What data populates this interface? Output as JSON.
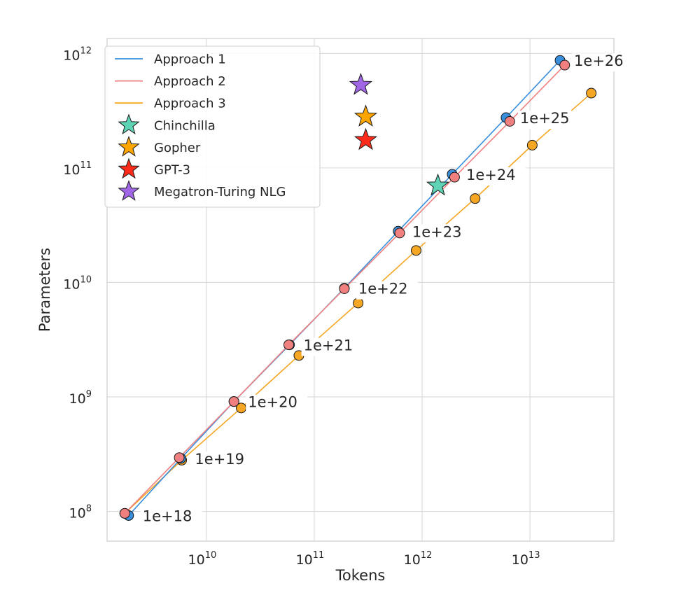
{
  "chart_data": {
    "type": "scatter",
    "title": "",
    "xlabel": "Tokens",
    "ylabel": "Parameters",
    "xscale": "log",
    "yscale": "log",
    "xlim": [
      1200000000.0,
      60000000000000.0
    ],
    "ylim": [
      55000000.0,
      1350000000000.0
    ],
    "grid": true,
    "legend_position": "top-left",
    "x_ticks": [
      {
        "value": 10000000000.0,
        "base": "10",
        "exp": "10"
      },
      {
        "value": 100000000000.0,
        "base": "10",
        "exp": "11"
      },
      {
        "value": 1000000000000.0,
        "base": "10",
        "exp": "12"
      },
      {
        "value": 10000000000000.0,
        "base": "10",
        "exp": "13"
      }
    ],
    "y_ticks": [
      {
        "value": 100000000.0,
        "base": "10",
        "exp": "8"
      },
      {
        "value": 1000000000.0,
        "base": "10",
        "exp": "9"
      },
      {
        "value": 10000000000.0,
        "base": "10",
        "exp": "10"
      },
      {
        "value": 100000000000.0,
        "base": "10",
        "exp": "11"
      },
      {
        "value": 1000000000000.0,
        "base": "10",
        "exp": "12"
      }
    ],
    "flop_labels": [
      "1e+18",
      "1e+19",
      "1e+20",
      "1e+21",
      "1e+22",
      "1e+23",
      "1e+24",
      "1e+25",
      "1e+26"
    ],
    "series": [
      {
        "name": "Approach 1",
        "color": "#3a8fdd",
        "x": [
          1900000000.0,
          5800000000.0,
          18000000000.0,
          59000000000.0,
          190000000000.0,
          600000000000.0,
          1900000000000.0,
          6000000000000.0,
          19000000000000.0
        ],
        "y": [
          92000000.0,
          290000000.0,
          910000000.0,
          2850000000.0,
          8900000000.0,
          28000000000.0,
          88000000000.0,
          275000000000.0,
          870000000000.0
        ]
      },
      {
        "name": "Approach 2",
        "color": "#f08080",
        "x": [
          1750000000.0,
          5600000000.0,
          18000000000.0,
          58000000000.0,
          190000000000.0,
          620000000000.0,
          2000000000000.0,
          6500000000000.0,
          21000000000000.0
        ],
        "y": [
          96000000.0,
          295000000.0,
          910000000.0,
          2850000000.0,
          8800000000.0,
          27000000000.0,
          83000000000.0,
          255000000000.0,
          790000000000.0
        ]
      },
      {
        "name": "Approach 3",
        "color": "#f5a623",
        "x": [
          1750000000.0,
          5900000000.0,
          21000000000.0,
          72000000000.0,
          255000000000.0,
          880000000000.0,
          3100000000000.0,
          10500000000000.0,
          37000000000000.0
        ],
        "y": [
          96000000.0,
          280000000.0,
          800000000.0,
          2300000000.0,
          6600000000.0,
          19000000000.0,
          54000000000.0,
          158000000000.0,
          450000000000.0
        ]
      }
    ],
    "models": [
      {
        "name": "Chinchilla",
        "color": "#5fd3b5",
        "tokens": 1400000000000.0,
        "params": 70000000000.0
      },
      {
        "name": "Gopher",
        "color": "#ffa500",
        "tokens": 300000000000.0,
        "params": 280000000000.0
      },
      {
        "name": "GPT-3",
        "color": "#ff2a1a",
        "tokens": 300000000000.0,
        "params": 175000000000.0
      },
      {
        "name": "Megatron-Turing NLG",
        "color": "#a066e6",
        "tokens": 270000000000.0,
        "params": 530000000000.0
      }
    ],
    "legend": [
      "Approach 1",
      "Approach 2",
      "Approach 3",
      "Chinchilla",
      "Gopher",
      "GPT-3",
      "Megatron-Turing NLG"
    ]
  }
}
